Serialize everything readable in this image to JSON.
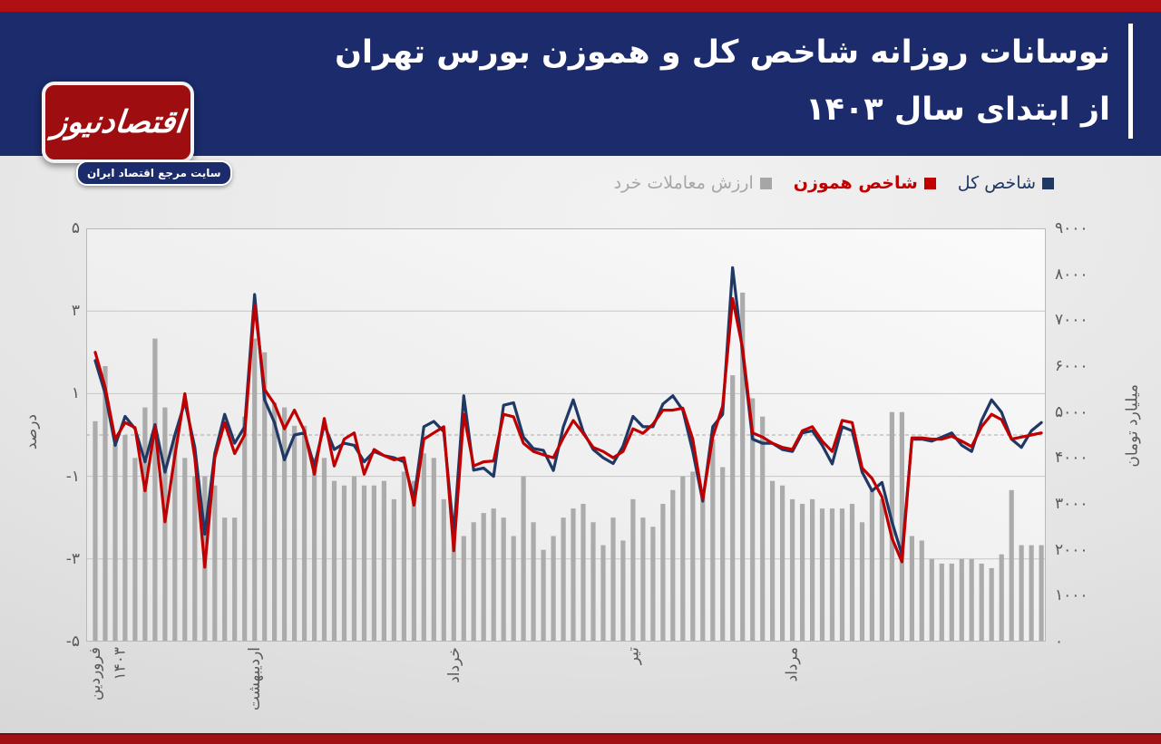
{
  "header": {
    "title_line1": "نوسانات روزانه شاخص کل و هموزن بورس تهران",
    "title_line2": "از ابتدای سال ۱۴۰۳",
    "logo": {
      "name": "اقتصادنیوز",
      "tagline": "سایت مرجع اقتصاد ایران"
    }
  },
  "colors": {
    "top_band_red": "#b00f13",
    "header_navy": "#1b2b6b",
    "logo_red": "#9e0d10",
    "bottom_band_red": "#a01014",
    "line_total_index": "#1f3864",
    "line_equal_weight": "#c00000",
    "bars_trade_value": "#ababab",
    "axis_text": "#595959",
    "gridline": "#c6c6c6",
    "plot_border": "#b9b9b9"
  },
  "legend": [
    {
      "label": "شاخص کل",
      "swatch": "#1f3864",
      "text_color": "#1f3864",
      "bold": false
    },
    {
      "label": "شاخص هموزن",
      "swatch": "#c00000",
      "text_color": "#c00000",
      "bold": true
    },
    {
      "label": "ارزش معاملات خرد",
      "swatch": "#a6a6a6",
      "text_color": "#a6a6a6",
      "bold": false
    }
  ],
  "chart_data": {
    "type": "combo bar+line, daily data",
    "n_points": 96,
    "y_left": {
      "title": "درصد",
      "range": [
        -5,
        5
      ],
      "solid_gridlines": [
        3,
        1,
        -1,
        -3
      ],
      "dashed_gridline": 0,
      "ticks": [
        {
          "v": 5,
          "label": "۵"
        },
        {
          "v": 3,
          "label": "۳"
        },
        {
          "v": 1,
          "label": "۱"
        },
        {
          "v": -1,
          "label": "-۱"
        },
        {
          "v": -3,
          "label": "-۳"
        },
        {
          "v": -5,
          "label": "-۵"
        }
      ]
    },
    "y_right": {
      "title": "میلیارد تومان",
      "range": [
        0,
        9000
      ],
      "ticks": [
        {
          "v": 9000,
          "label": "۹۰۰۰"
        },
        {
          "v": 8000,
          "label": "۸۰۰۰"
        },
        {
          "v": 7000,
          "label": "۷۰۰۰"
        },
        {
          "v": 6000,
          "label": "۶۰۰۰"
        },
        {
          "v": 5000,
          "label": "۵۰۰۰"
        },
        {
          "v": 4000,
          "label": "۴۰۰۰"
        },
        {
          "v": 3000,
          "label": "۳۰۰۰"
        },
        {
          "v": 2000,
          "label": "۲۰۰۰"
        },
        {
          "v": 1000,
          "label": "۱۰۰۰"
        },
        {
          "v": 0,
          "label": "۰"
        }
      ]
    },
    "x_axis": {
      "type": "trading days, labels shown at month starts only",
      "month_ticks": [
        {
          "label": "فروردین",
          "year": "۱۴۰۳",
          "day_index": 0
        },
        {
          "label": "اردیبهشت",
          "day_index": 16
        },
        {
          "label": "خرداد",
          "day_index": 36
        },
        {
          "label": "تیر",
          "day_index": 54
        },
        {
          "label": "مرداد",
          "day_index": 70
        }
      ]
    },
    "series": [
      {
        "name": "شاخص کل",
        "type": "line",
        "axis": "left",
        "color": "#1f3864",
        "values": [
          1.8,
          1.0,
          -0.25,
          0.45,
          0.15,
          -0.65,
          0.25,
          -0.9,
          0.0,
          0.8,
          -0.3,
          -2.4,
          -0.45,
          0.5,
          -0.2,
          0.2,
          3.4,
          0.85,
          0.3,
          -0.6,
          0.0,
          0.05,
          -0.75,
          0.25,
          -0.35,
          -0.2,
          -0.25,
          -0.65,
          -0.4,
          -0.5,
          -0.55,
          -0.65,
          -1.55,
          0.2,
          0.33,
          0.08,
          -2.4,
          0.95,
          -0.85,
          -0.8,
          -1.0,
          0.72,
          0.78,
          -0.05,
          -0.33,
          -0.37,
          -0.86,
          0.2,
          0.85,
          0.08,
          -0.35,
          -0.55,
          -0.69,
          -0.27,
          0.45,
          0.2,
          0.2,
          0.75,
          0.95,
          0.6,
          -0.4,
          -1.6,
          0.2,
          0.5,
          4.05,
          2.0,
          -0.1,
          -0.2,
          -0.2,
          -0.35,
          -0.4,
          0.05,
          0.1,
          -0.25,
          -0.7,
          0.2,
          0.1,
          -0.9,
          -1.35,
          -1.15,
          -2.1,
          -2.9,
          -0.1,
          -0.1,
          -0.15,
          -0.05,
          0.05,
          -0.25,
          -0.4,
          0.35,
          0.85,
          0.55,
          -0.1,
          -0.3,
          0.1,
          0.3
        ]
      },
      {
        "name": "شاخص هموزن",
        "type": "line",
        "axis": "left",
        "color": "#c00000",
        "values": [
          2.0,
          1.15,
          -0.1,
          0.3,
          0.18,
          -1.35,
          0.2,
          -2.1,
          -0.5,
          1.0,
          -0.55,
          -3.2,
          -0.55,
          0.3,
          -0.45,
          0.0,
          3.15,
          1.1,
          0.75,
          0.15,
          0.6,
          0.1,
          -0.95,
          0.4,
          -0.75,
          -0.1,
          0.05,
          -0.95,
          -0.35,
          -0.5,
          -0.6,
          -0.55,
          -1.7,
          -0.1,
          0.05,
          0.2,
          -2.8,
          0.5,
          -0.75,
          -0.65,
          -0.63,
          0.5,
          0.44,
          -0.2,
          -0.4,
          -0.48,
          -0.55,
          -0.07,
          0.35,
          0.04,
          -0.3,
          -0.4,
          -0.55,
          -0.4,
          0.15,
          0.04,
          0.26,
          0.6,
          0.6,
          0.65,
          -0.1,
          -1.55,
          -0.05,
          0.7,
          3.3,
          2.1,
          0.05,
          -0.05,
          -0.2,
          -0.3,
          -0.35,
          0.1,
          0.2,
          -0.15,
          -0.4,
          0.35,
          0.3,
          -0.8,
          -1.05,
          -1.5,
          -2.5,
          -3.07,
          -0.07,
          -0.07,
          -0.1,
          -0.1,
          -0.03,
          -0.15,
          -0.28,
          0.2,
          0.5,
          0.37,
          -0.1,
          -0.05,
          0.0,
          0.05
        ]
      },
      {
        "name": "ارزش معاملات خرد",
        "type": "bar",
        "axis": "right",
        "color": "#ababab",
        "values": [
          4800,
          6000,
          4300,
          4500,
          4000,
          5100,
          6600,
          5100,
          4500,
          4000,
          3600,
          3600,
          3400,
          2700,
          2700,
          4900,
          6600,
          6300,
          5200,
          5100,
          4700,
          4700,
          4000,
          4000,
          3500,
          3400,
          3600,
          3400,
          3400,
          3500,
          3100,
          3700,
          3500,
          4100,
          4000,
          3100,
          2300,
          2300,
          2600,
          2800,
          2900,
          2700,
          2300,
          3600,
          2600,
          2000,
          2300,
          2700,
          2900,
          3000,
          2600,
          2100,
          2700,
          2200,
          3100,
          2700,
          2500,
          3000,
          3300,
          3600,
          3700,
          3300,
          4400,
          3800,
          5800,
          7600,
          5300,
          4900,
          3500,
          3400,
          3100,
          3000,
          3100,
          2900,
          2900,
          2900,
          3000,
          2600,
          3300,
          3100,
          5000,
          5000,
          2300,
          2200,
          1800,
          1700,
          1700,
          1800,
          1800,
          1700,
          1600,
          1900,
          3300,
          2100,
          2100,
          2100
        ]
      }
    ]
  }
}
